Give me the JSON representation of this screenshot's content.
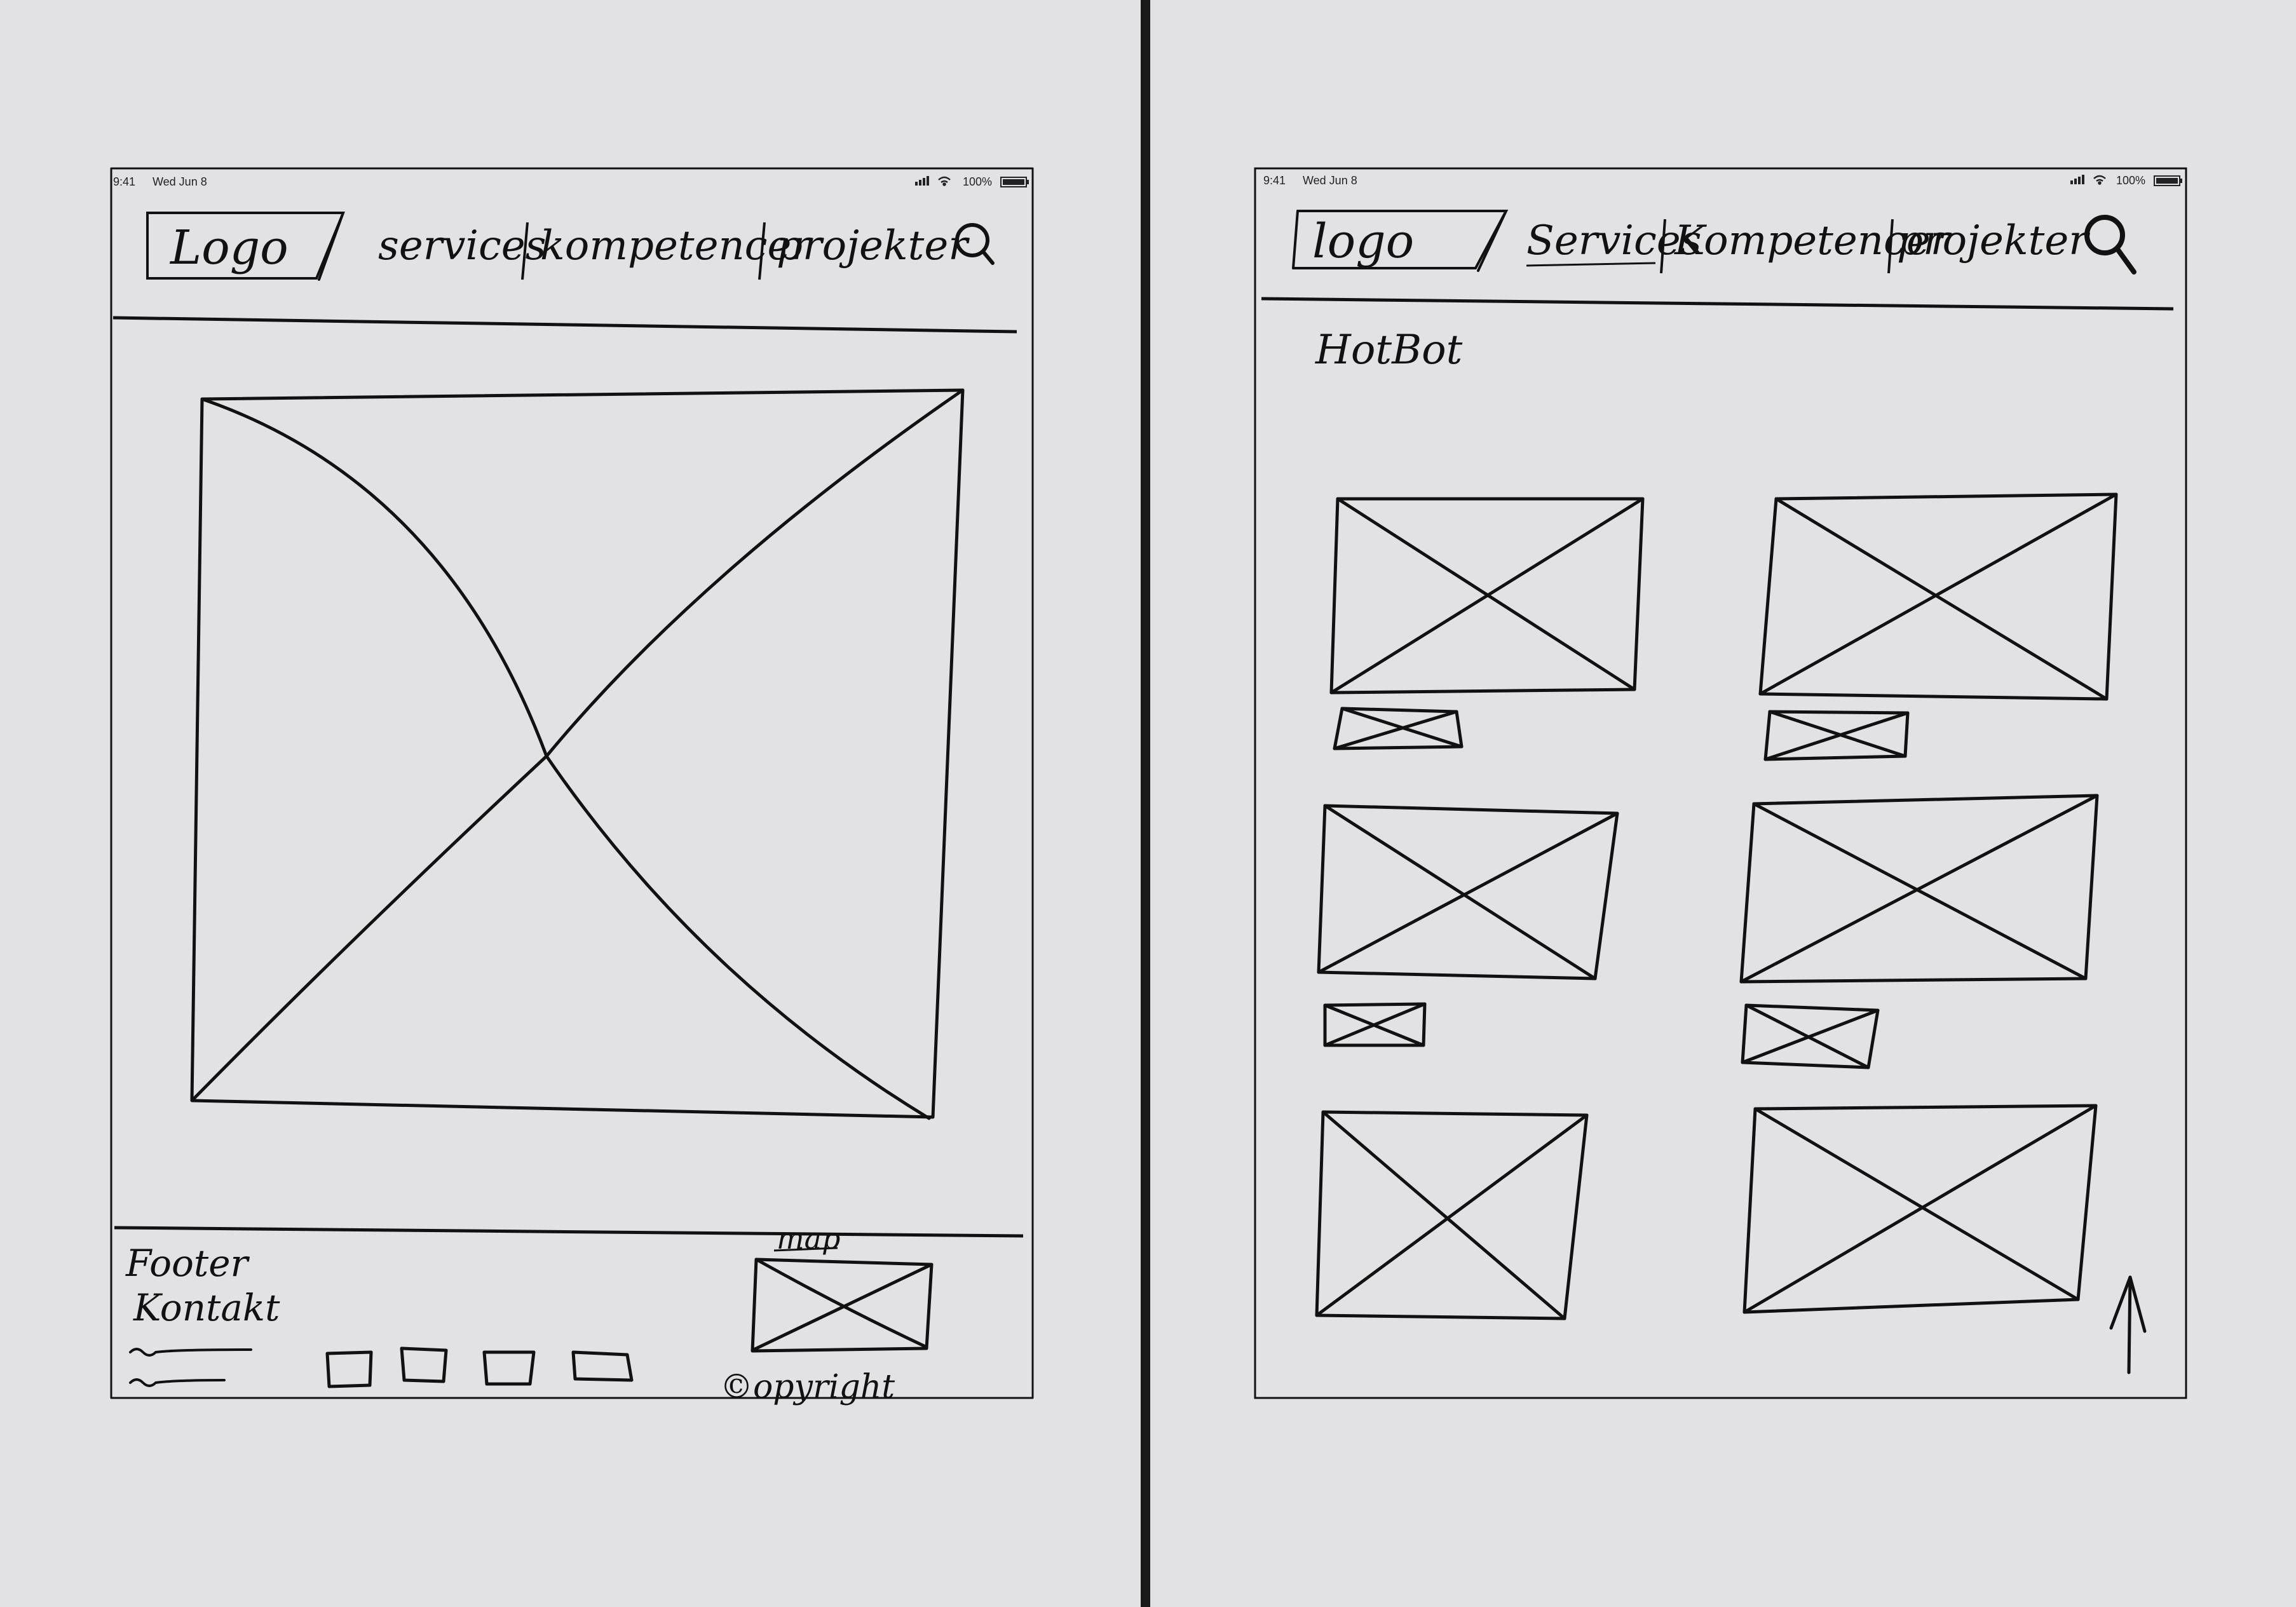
{
  "pages": [
    {
      "status_bar": {
        "time": "9:41",
        "date": "Wed Jun 8",
        "battery": "100%"
      },
      "nav": {
        "logo": "Logo",
        "items": [
          "services",
          "kompetencer",
          "projekter"
        ],
        "separator": "|"
      },
      "footer": {
        "title": "Footer",
        "contact": "Kontakt",
        "map_label": "map",
        "copyright": "©opyright",
        "social_icon_count": 4
      }
    },
    {
      "status_bar": {
        "time": "9:41",
        "date": "Wed Jun 8",
        "battery": "100%"
      },
      "nav": {
        "logo": "logo",
        "items": [
          "Services",
          "Kompetencer",
          "projekter"
        ],
        "separator": "|"
      },
      "heading": "HotBot",
      "grid": {
        "rows": 3,
        "columns": 2
      }
    }
  ],
  "colors": {
    "paper": "#e2e2e4",
    "ink": "#111111",
    "gap": "#1a1a1a",
    "background": "#ffffff"
  }
}
